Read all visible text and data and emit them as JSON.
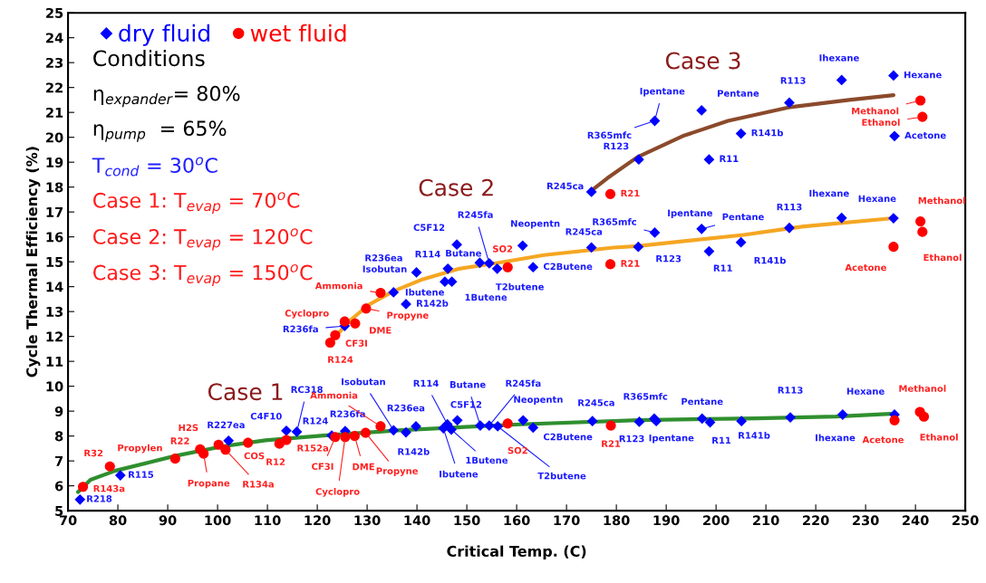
{
  "chart_data": {
    "type": "scatter",
    "xlabel": "Critical Temp. (C)",
    "ylabel": "Cycle Thermal Efficiency (%)",
    "xlim": [
      70,
      250
    ],
    "xticks": [
      70,
      80,
      90,
      100,
      110,
      120,
      130,
      140,
      150,
      160,
      170,
      180,
      190,
      200,
      210,
      220,
      230,
      240,
      250
    ],
    "ylim": [
      5,
      25
    ],
    "yticks": [
      5,
      6,
      7,
      8,
      9,
      10,
      11,
      12,
      13,
      14,
      15,
      16,
      17,
      18,
      19,
      20,
      21,
      22,
      23,
      24,
      25
    ],
    "grid": false,
    "legend": "top left",
    "series": [
      {
        "name": "dry fluid",
        "color": "#0000ff",
        "marker": "diamond",
        "x": [
          72.4,
          80.5,
          102.2,
          113.8,
          115.9,
          122.9,
          125.6,
          135.3,
          137.8,
          139.8,
          145.3,
          146.1,
          146.9,
          148.1,
          152.7,
          154.5,
          156.2,
          161.3,
          163.3,
          175.2,
          184.6,
          187.6,
          188.0,
          197.2,
          198.8,
          205.1,
          214.9,
          225.4,
          235.8,
          125.5,
          135.3,
          137.8,
          139.9,
          145.6,
          147.0,
          146.2,
          148.0,
          152.6,
          154.5,
          156.1,
          161.2,
          163.3,
          175.0,
          184.4,
          187.7,
          197.1,
          198.6,
          205.0,
          214.7,
          225.2,
          235.6,
          175.0,
          184.5,
          198.6,
          187.7,
          197.1,
          205.0,
          214.7,
          225.2,
          235.6,
          235.8
        ],
        "values": [
          5.45,
          6.42,
          7.81,
          8.21,
          8.17,
          8.02,
          8.2,
          8.23,
          8.15,
          8.39,
          8.31,
          8.47,
          8.26,
          8.63,
          8.42,
          8.42,
          8.39,
          8.63,
          8.34,
          8.6,
          8.57,
          8.7,
          8.6,
          8.7,
          8.55,
          8.6,
          8.75,
          8.86,
          8.86,
          12.42,
          13.77,
          13.3,
          14.57,
          14.2,
          14.2,
          14.72,
          15.69,
          14.96,
          14.94,
          14.72,
          15.65,
          14.78,
          15.57,
          15.6,
          16.17,
          16.32,
          15.42,
          15.78,
          16.36,
          16.76,
          16.75,
          17.81,
          19.11,
          19.11,
          20.66,
          21.08,
          20.15,
          21.39,
          22.3,
          22.48,
          20.05
        ]
      },
      {
        "name": "wet fluid",
        "color": "#ff0000",
        "marker": "circle",
        "x": [
          73.0,
          78.4,
          91.5,
          96.5,
          97.2,
          100.2,
          101.6,
          106.1,
          112.4,
          113.8,
          123.6,
          125.6,
          127.5,
          132.7,
          129.7,
          158.2,
          178.9,
          235.8,
          240.9,
          241.7,
          122.6,
          123.6,
          125.5,
          127.6,
          129.8,
          132.7,
          158.2,
          178.8,
          241.0,
          241.4,
          235.6,
          178.8,
          241.0,
          241.4
        ],
        "values": [
          5.96,
          6.78,
          7.09,
          7.47,
          7.29,
          7.65,
          7.45,
          7.73,
          7.69,
          7.84,
          7.96,
          7.96,
          8.0,
          8.39,
          8.13,
          8.5,
          8.42,
          8.63,
          8.97,
          8.78,
          11.75,
          12.05,
          12.6,
          12.52,
          13.12,
          13.75,
          14.78,
          14.9,
          16.62,
          16.2,
          15.6,
          17.72,
          21.48,
          20.82
        ]
      },
      {
        "type": "line",
        "color": "#2f8f2f",
        "marker": "none",
        "line_style": "solid",
        "x": [
          72,
          74.5,
          79.4,
          91.5,
          100.6,
          109.6,
          121.8,
          137,
          160.7,
          184.4,
          208.2,
          224,
          235
        ],
        "values": [
          5.75,
          6.24,
          6.6,
          7.2,
          7.57,
          7.83,
          8.03,
          8.24,
          8.47,
          8.64,
          8.71,
          8.78,
          8.89
        ]
      },
      {
        "type": "line",
        "color": "#f5a623",
        "marker": "none",
        "line_style": "solid",
        "x": [
          122.7,
          126.7,
          130.3,
          135.2,
          141.2,
          148.5,
          156.4,
          165.5,
          179.4,
          184.2,
          205.5,
          217.6,
          235.6
        ],
        "values": [
          11.8,
          12.66,
          13.27,
          13.81,
          14.3,
          14.72,
          14.96,
          15.27,
          15.57,
          15.63,
          16.08,
          16.42,
          16.75
        ]
      },
      {
        "type": "line",
        "color": "#8b4a2b",
        "marker": "none",
        "line_style": "solid",
        "x": [
          175.1,
          178.2,
          184.2,
          193.3,
          202.4,
          214.5,
          226.7,
          235.6
        ],
        "values": [
          17.87,
          18.36,
          19.2,
          20.05,
          20.66,
          21.2,
          21.5,
          21.69
        ]
      }
    ],
    "annotations": [
      "Conditions",
      "η$_{expander}$= 80%",
      "η$_{pump}$  = 65%",
      "T$_{cond}$ = 30$^{o}$C",
      "Case 1: T$_{evap}$ = 70$^{o}$C",
      "Case 2: T$_{evap}$ = 120$^{o}$C",
      "Case 3: T$_{evap}$ = 150$^{o}$C",
      "Case 1",
      "Case 2",
      "Case 3",
      {
        "text": "R218",
        "x": 72.4,
        "y": 5.45
      },
      {
        "text": "R143a",
        "x": 73.0,
        "y": 5.96
      },
      {
        "text": "R32",
        "x": 78.4,
        "y": 6.78
      },
      {
        "text": "R115",
        "x": 80.5,
        "y": 6.42
      },
      {
        "text": "Propylen",
        "x": 91.5,
        "y": 7.09
      },
      {
        "text": "R22",
        "x": 96.5,
        "y": 7.47
      },
      {
        "text": "Propane",
        "x": 97.2,
        "y": 7.29
      },
      {
        "text": "H2S",
        "x": 100.2,
        "y": 7.65
      },
      {
        "text": "R134a",
        "x": 101.6,
        "y": 7.45
      },
      {
        "text": "R227ea",
        "x": 102.2,
        "y": 7.81
      },
      {
        "text": "COS",
        "x": 106.1,
        "y": 7.73
      },
      {
        "text": "R12",
        "x": 112.4,
        "y": 7.69
      },
      {
        "text": "R152a",
        "x": 113.8,
        "y": 7.84
      },
      {
        "text": "C4F10",
        "x": 113.8,
        "y": 8.21
      },
      {
        "text": "RC318",
        "x": 115.9,
        "y": 8.17
      },
      {
        "text": "R124",
        "x": 122.9,
        "y": 8.02
      },
      {
        "text": "R236fa",
        "x": 125.6,
        "y": 8.2
      },
      {
        "text": "CF3I",
        "x": 123.6,
        "y": 7.96
      },
      {
        "text": "Cyclopro",
        "x": 125.6,
        "y": 7.96
      },
      {
        "text": "DME",
        "x": 127.5,
        "y": 8.0
      },
      {
        "text": "Ammonia",
        "x": 132.7,
        "y": 8.39
      },
      {
        "text": "Propyne",
        "x": 129.7,
        "y": 8.13
      },
      {
        "text": "Isobutan",
        "x": 135.3,
        "y": 8.23
      },
      {
        "text": "R142b",
        "x": 137.8,
        "y": 8.15
      },
      {
        "text": "R236ea",
        "x": 139.8,
        "y": 8.39
      },
      {
        "text": "Ibutene",
        "x": 145.3,
        "y": 8.31
      },
      {
        "text": "R114",
        "x": 146.1,
        "y": 8.47
      },
      {
        "text": "1Butene",
        "x": 146.9,
        "y": 8.26
      },
      {
        "text": "C5F12",
        "x": 148.1,
        "y": 8.63
      },
      {
        "text": "Butane",
        "x": 152.7,
        "y": 8.42
      },
      {
        "text": "R245fa",
        "x": 154.5,
        "y": 8.42
      },
      {
        "text": "T2butene",
        "x": 156.2,
        "y": 8.39
      },
      {
        "text": "SO2",
        "x": 158.2,
        "y": 8.5
      },
      {
        "text": "Neopentn",
        "x": 161.3,
        "y": 8.63
      },
      {
        "text": "C2Butene",
        "x": 163.3,
        "y": 8.34
      },
      {
        "text": "R245ca",
        "x": 175.2,
        "y": 8.6
      },
      {
        "text": "R21",
        "x": 178.9,
        "y": 8.42
      },
      {
        "text": "R123",
        "x": 184.6,
        "y": 8.57
      },
      {
        "text": "R365mfc",
        "x": 187.6,
        "y": 8.7
      },
      {
        "text": "Ipentane",
        "x": 188.0,
        "y": 8.6
      },
      {
        "text": "Pentane",
        "x": 197.2,
        "y": 8.7
      },
      {
        "text": "R11",
        "x": 198.8,
        "y": 8.55
      },
      {
        "text": "R141b",
        "x": 205.1,
        "y": 8.6
      },
      {
        "text": "R113",
        "x": 214.9,
        "y": 8.75
      },
      {
        "text": "Ihexane",
        "x": 225.4,
        "y": 8.86
      },
      {
        "text": "Hexane",
        "x": 235.8,
        "y": 8.86
      },
      {
        "text": "Acetone",
        "x": 235.8,
        "y": 8.63
      },
      {
        "text": "Methanol",
        "x": 240.9,
        "y": 8.97
      },
      {
        "text": "Ethanol",
        "x": 241.7,
        "y": 8.78
      },
      {
        "text": "R124",
        "x": 122.6,
        "y": 11.75
      },
      {
        "text": "CF3I",
        "x": 123.6,
        "y": 12.05
      },
      {
        "text": "R236fa",
        "x": 125.5,
        "y": 12.42
      },
      {
        "text": "Cyclopro",
        "x": 125.5,
        "y": 12.6
      },
      {
        "text": "DME",
        "x": 127.6,
        "y": 12.52
      },
      {
        "text": "Propyne",
        "x": 129.8,
        "y": 13.12
      },
      {
        "text": "Ammonia",
        "x": 132.7,
        "y": 13.75
      },
      {
        "text": "Isobutan",
        "x": 135.3,
        "y": 13.77
      },
      {
        "text": "R142b",
        "x": 137.8,
        "y": 13.3
      },
      {
        "text": "R236ea",
        "x": 139.9,
        "y": 14.57
      },
      {
        "text": "Ibutene",
        "x": 145.6,
        "y": 14.2
      },
      {
        "text": "1Butene",
        "x": 147.0,
        "y": 14.2
      },
      {
        "text": "R114",
        "x": 146.2,
        "y": 14.72
      },
      {
        "text": "C5F12",
        "x": 148.0,
        "y": 15.69
      },
      {
        "text": "Butane",
        "x": 152.6,
        "y": 14.96
      },
      {
        "text": "R245fa",
        "x": 154.5,
        "y": 14.94
      },
      {
        "text": "T2butene",
        "x": 156.1,
        "y": 14.72
      },
      {
        "text": "SO2",
        "x": 158.2,
        "y": 14.78
      },
      {
        "text": "Neopentn",
        "x": 161.2,
        "y": 15.65
      },
      {
        "text": "C2Butene",
        "x": 163.3,
        "y": 14.78
      },
      {
        "text": "R245ca",
        "x": 175.0,
        "y": 15.57
      },
      {
        "text": "R21",
        "x": 178.8,
        "y": 14.9
      },
      {
        "text": "R123",
        "x": 184.4,
        "y": 15.6
      },
      {
        "text": "R365mfc",
        "x": 187.7,
        "y": 16.17
      },
      {
        "text": "Ipentane",
        "x": 187.7,
        "y": 16.17
      },
      {
        "text": "Pentane",
        "x": 197.1,
        "y": 16.32
      },
      {
        "text": "R11",
        "x": 198.6,
        "y": 15.42
      },
      {
        "text": "R141b",
        "x": 205.0,
        "y": 15.78
      },
      {
        "text": "R113",
        "x": 214.7,
        "y": 16.36
      },
      {
        "text": "Ihexane",
        "x": 225.2,
        "y": 16.76
      },
      {
        "text": "Hexane",
        "x": 235.6,
        "y": 16.75
      },
      {
        "text": "Methanol",
        "x": 241.0,
        "y": 16.62
      },
      {
        "text": "Ethanol",
        "x": 241.4,
        "y": 16.2
      },
      {
        "text": "Acetone",
        "x": 235.6,
        "y": 15.6
      },
      {
        "text": "R245ca",
        "x": 175.0,
        "y": 17.81
      },
      {
        "text": "R21",
        "x": 178.8,
        "y": 17.72
      },
      {
        "text": "R123",
        "x": 184.5,
        "y": 19.11
      },
      {
        "text": "R11",
        "x": 198.6,
        "y": 19.11
      },
      {
        "text": "R365mfc",
        "x": 187.7,
        "y": 20.66
      },
      {
        "text": "Ipentane",
        "x": 187.7,
        "y": 20.66
      },
      {
        "text": "Pentane",
        "x": 197.1,
        "y": 21.08
      },
      {
        "text": "R141b",
        "x": 205.0,
        "y": 20.15
      },
      {
        "text": "R113",
        "x": 214.7,
        "y": 21.39
      },
      {
        "text": "Ihexane",
        "x": 225.2,
        "y": 22.3
      },
      {
        "text": "Hexane",
        "x": 235.6,
        "y": 22.48
      },
      {
        "text": "Methanol",
        "x": 241.0,
        "y": 21.48
      },
      {
        "text": "Ethanol",
        "x": 241.4,
        "y": 20.82
      },
      {
        "text": "Acetone",
        "x": 235.8,
        "y": 20.05
      }
    ]
  }
}
